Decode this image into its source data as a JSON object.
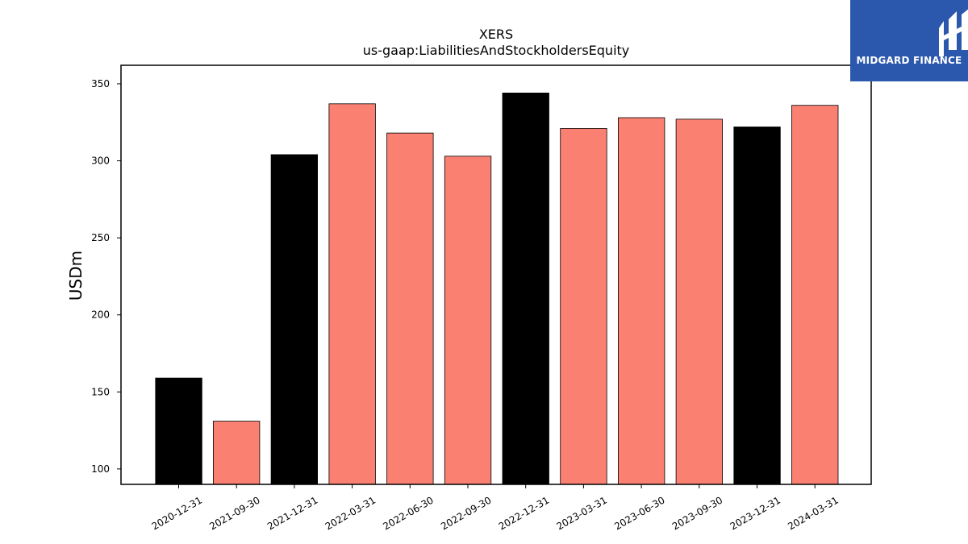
{
  "chart_data": {
    "type": "bar",
    "title": "XERS",
    "subtitle": "us-gaap:LiabilitiesAndStockholdersEquity",
    "xlabel": "",
    "ylabel": "USDm",
    "ylim": [
      90,
      362
    ],
    "yticks": [
      100,
      150,
      200,
      250,
      300,
      350
    ],
    "categories": [
      "2020-12-31",
      "2021-09-30",
      "2021-12-31",
      "2022-03-31",
      "2022-06-30",
      "2022-09-30",
      "2022-12-31",
      "2023-03-31",
      "2023-06-30",
      "2023-09-30",
      "2023-12-31",
      "2024-03-31"
    ],
    "values": [
      159,
      131,
      304,
      337,
      318,
      303,
      344,
      321,
      328,
      327,
      322,
      336
    ],
    "period": [
      "annual",
      "quarterly",
      "annual",
      "quarterly",
      "quarterly",
      "quarterly",
      "annual",
      "quarterly",
      "quarterly",
      "quarterly",
      "annual",
      "quarterly"
    ],
    "colors": {
      "annual": "#000000",
      "quarterly": "#fa8072"
    },
    "grid": false,
    "legend": "none"
  },
  "logo": {
    "text": "MIDGARD FINANCE",
    "bg": "#2b58ad"
  }
}
